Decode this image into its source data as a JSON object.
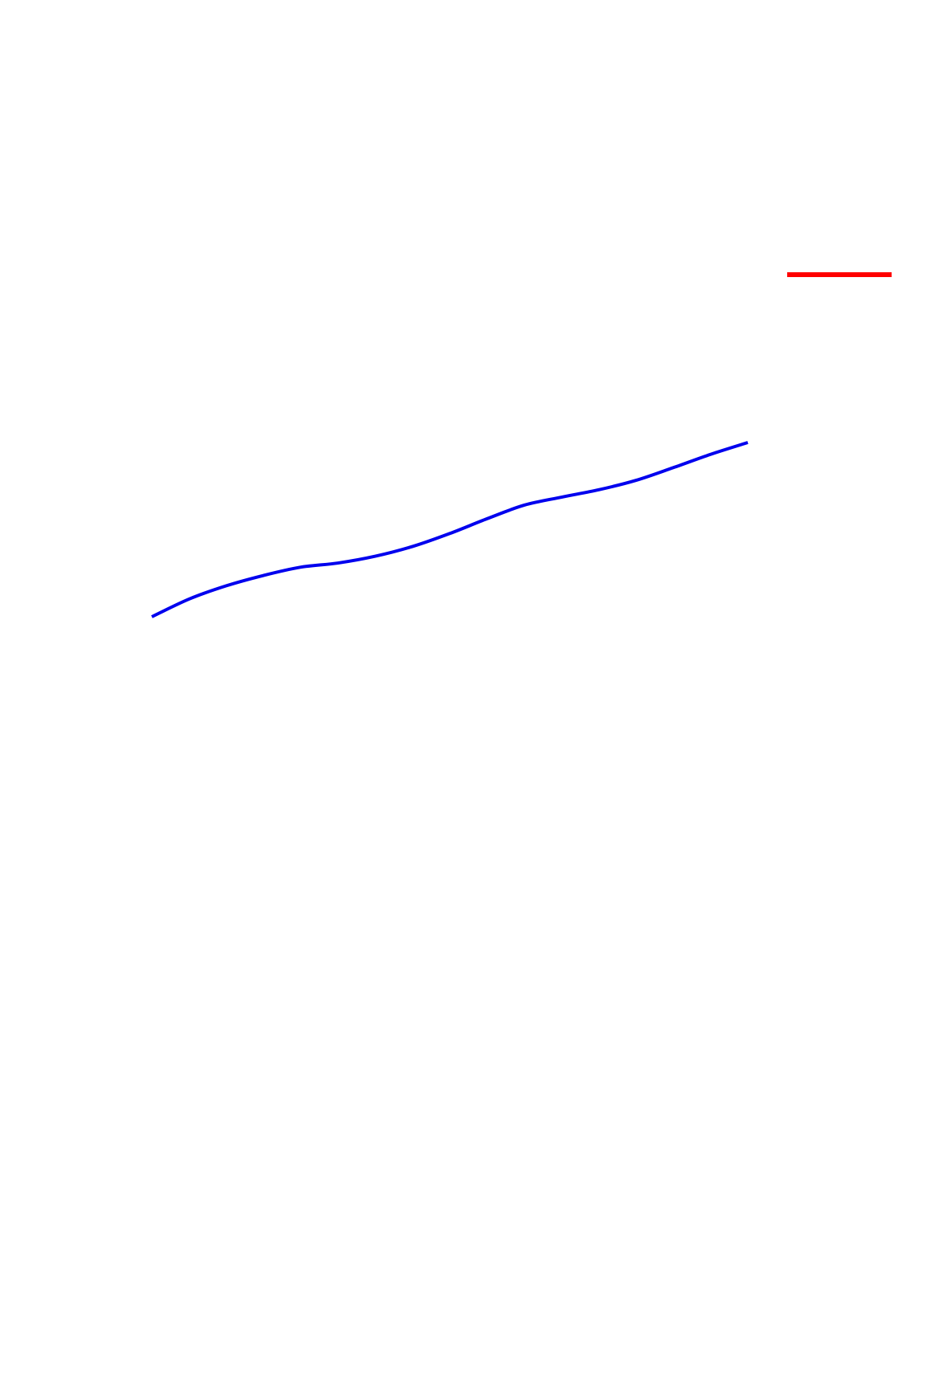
{
  "chart_data": {
    "type": "line",
    "title": "",
    "xlabel": "",
    "ylabel": "",
    "grid": false,
    "axes_visible": false,
    "legend_placement": "top-right",
    "colors": {
      "background": "#ffffff"
    },
    "series": [
      {
        "color": "#0000ee",
        "x": [
          0,
          0.5,
          1,
          1.5,
          2,
          2.5,
          3,
          3.5,
          4,
          4.5,
          5,
          5.5,
          6,
          6.5,
          7,
          7.5,
          8
        ],
        "y": [
          0,
          0.6,
          1.05,
          1.4,
          1.68,
          1.82,
          2.05,
          2.38,
          2.82,
          3.32,
          3.78,
          4.05,
          4.3,
          4.62,
          5.05,
          5.5,
          5.9
        ]
      },
      {
        "color": "#ff0000",
        "role": "legend-swatch",
        "values": []
      }
    ]
  }
}
